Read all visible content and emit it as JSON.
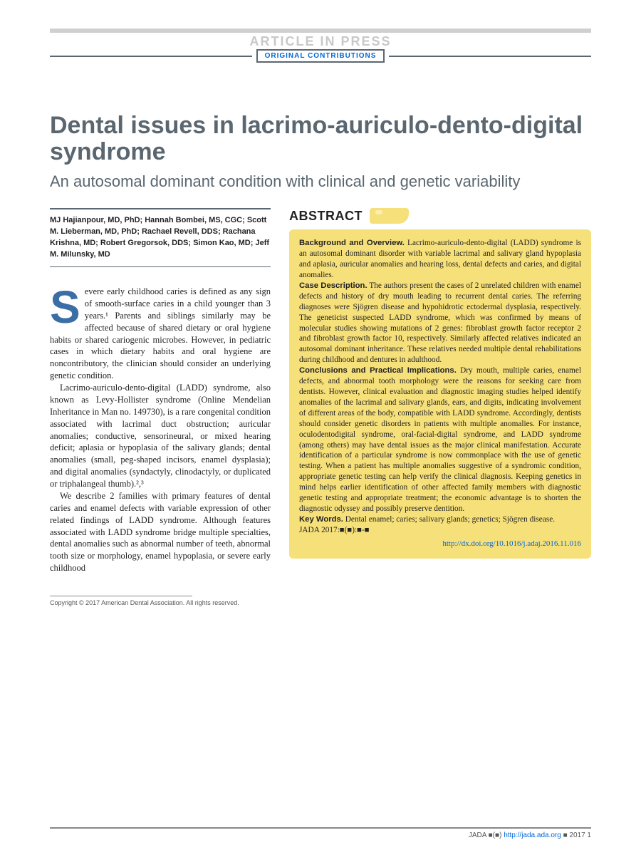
{
  "header": {
    "banner": "ARTICLE IN PRESS",
    "section_label": "ORIGINAL CONTRIBUTIONS"
  },
  "title": {
    "main": "Dental issues in lacrimo-auriculo-dento-digital syndrome",
    "subtitle": "An autosomal dominant condition with clinical and genetic variability"
  },
  "authors": "MJ Hajianpour, MD, PhD; Hannah Bombei, MS, CGC; Scott M. Lieberman, MD, PhD; Rachael Revell, DDS; Rachana Krishna, MD; Robert Gregorsok, DDS; Simon Kao, MD; Jeff M. Milunsky, MD",
  "body": {
    "p1_first": "S",
    "p1": "evere early childhood caries is defined as any sign of smooth-surface caries in a child younger than 3 years.¹ Parents and siblings similarly may be affected because of shared dietary or oral hygiene habits or shared cariogenic microbes. However, in pediatric cases in which dietary habits and oral hygiene are noncontributory, the clinician should consider an underlying genetic condition.",
    "p2": "Lacrimo-auriculo-dento-digital (LADD) syndrome, also known as Levy-Hollister syndrome (Online Mendelian Inheritance in Man no. 149730), is a rare congenital condition associated with lacrimal duct obstruction; auricular anomalies; conductive, sensorineural, or mixed hearing deficit; aplasia or hypoplasia of the salivary glands; dental anomalies (small, peg-shaped incisors, enamel dysplasia); and digital anomalies (syndactyly, clinodactyly, or duplicated or triphalangeal thumb).²,³",
    "p3": "We describe 2 families with primary features of dental caries and enamel defects with variable expression of other related findings of LADD syndrome. Although features associated with LADD syndrome bridge multiple specialties, dental anomalies such as abnormal number of teeth, abnormal tooth size or morphology, enamel hypoplasia, or severe early childhood"
  },
  "copyright": "Copyright © 2017 American Dental Association. All rights reserved.",
  "abstract": {
    "heading": "ABSTRACT",
    "bg_head": "Background and Overview.",
    "bg_text": " Lacrimo-auriculo-dento-digital (LADD) syndrome is an autosomal dominant disorder with variable lacrimal and salivary gland hypoplasia and aplasia, auricular anomalies and hearing loss, dental defects and caries, and digital anomalies.",
    "case_head": "Case Description.",
    "case_text": " The authors present the cases of 2 unrelated children with enamel defects and history of dry mouth leading to recurrent dental caries. The referring diagnoses were Sjögren disease and hypohidrotic ectodermal dysplasia, respectively. The geneticist suspected LADD syndrome, which was confirmed by means of molecular studies showing mutations of 2 genes: fibroblast growth factor receptor 2 and fibroblast growth factor 10, respectively. Similarly affected relatives indicated an autosomal dominant inheritance. These relatives needed multiple dental rehabilitations during childhood and dentures in adulthood.",
    "concl_head": "Conclusions and Practical Implications.",
    "concl_text": " Dry mouth, multiple caries, enamel defects, and abnormal tooth morphology were the reasons for seeking care from dentists. However, clinical evaluation and diagnostic imaging studies helped identify anomalies of the lacrimal and salivary glands, ears, and digits, indicating involvement of different areas of the body, compatible with LADD syndrome. Accordingly, dentists should consider genetic disorders in patients with multiple anomalies. For instance, oculodentodigital syndrome, oral-facial-digital syndrome, and LADD syndrome (among others) may have dental issues as the major clinical manifestation. Accurate identification of a particular syndrome is now commonplace with the use of genetic testing. When a patient has multiple anomalies suggestive of a syndromic condition, appropriate genetic testing can help verify the clinical diagnosis. Keeping genetics in mind helps earlier identification of other affected family members with diagnostic genetic testing and appropriate treatment; the economic advantage is to shorten the diagnostic odyssey and possibly preserve dentition.",
    "kw_head": "Key Words.",
    "kw_text": " Dental enamel; caries; salivary glands; genetics; Sjögren disease.",
    "citation": "JADA 2017:■(■):■-■",
    "doi": "http://dx.doi.org/10.1016/j.adaj.2016.11.016"
  },
  "footer": {
    "text_left": "JADA ■(■)",
    "url": "http://jada.ada.org",
    "text_right": "■ 2017  1"
  },
  "colors": {
    "gray_text": "#5b6770",
    "blue_link": "#0066d6",
    "dropcap_blue": "#3a6ea5",
    "abstract_bg": "#f6e07a",
    "light_gray": "#c8c8c8"
  }
}
